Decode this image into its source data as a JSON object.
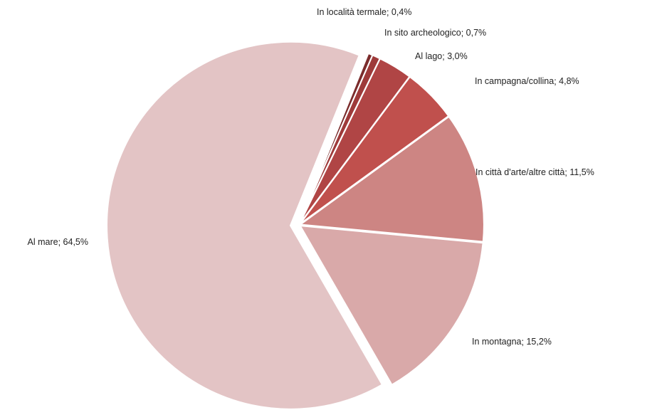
{
  "chart_data": {
    "type": "pie",
    "categories": [
      "In località termale",
      "In sito archeologico",
      "Al lago",
      "In campagna/collina",
      "In città d'arte/altre città",
      "In montagna",
      "Al mare"
    ],
    "values": [
      0.4,
      0.7,
      3.0,
      4.8,
      11.5,
      15.2,
      64.5
    ],
    "value_labels": [
      "0,4%",
      "0,7%",
      "3,0%",
      "4,8%",
      "11,5%",
      "15,2%",
      "64,5%"
    ],
    "colors": [
      "#7b2c2c",
      "#9e3a3a",
      "#b04545",
      "#c0504d",
      "#cd8583",
      "#d9a9a9",
      "#e3c4c5"
    ]
  }
}
